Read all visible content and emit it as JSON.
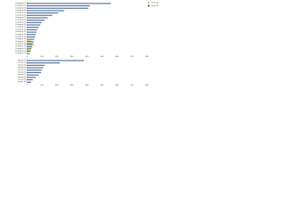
{
  "chart_data": [
    {
      "type": "bar",
      "orientation": "horizontal",
      "legend": "top-right",
      "categories": [
        "Category 01",
        "Category 02",
        "Category 03",
        "Category 04",
        "Category 05",
        "Category 06",
        "Category 07",
        "Category 08",
        "Category 09",
        "Category 10",
        "Category 11",
        "Category 12",
        "Category 13",
        "Category 14",
        "Category 15",
        "Category 16",
        "Category 17",
        "Category 18",
        "Category 19",
        "Category 20",
        "Category 21",
        "Category 22"
      ],
      "series": [
        {
          "name": "Series A",
          "color": "#d8cf5c",
          "values": [
            5,
            4,
            4,
            3,
            3,
            3,
            2,
            2,
            2,
            2,
            2,
            2,
            2,
            2,
            2,
            2,
            30,
            45,
            55,
            40,
            25,
            3
          ]
        },
        {
          "name": "Series B",
          "color": "#4b6a96",
          "values": [
            560,
            420,
            410,
            250,
            210,
            170,
            140,
            120,
            100,
            90,
            80,
            70,
            65,
            60,
            55,
            50,
            45,
            40,
            35,
            30,
            25,
            20
          ]
        }
      ],
      "xlim": [
        0,
        800
      ],
      "xticks": [
        0,
        100,
        200,
        300,
        400,
        500,
        600,
        700,
        800
      ]
    },
    {
      "type": "bar",
      "orientation": "horizontal",
      "categories": [
        "Group 01",
        "Group 02",
        "Group 03",
        "Group 04",
        "Group 05",
        "Group 06",
        "Group 07",
        "Group 08",
        "Group 09",
        "Group 10"
      ],
      "series": [
        {
          "name": "Series A",
          "color": "#d8cf5c",
          "values": [
            5,
            4,
            3,
            3,
            2,
            2,
            2,
            2,
            2,
            2
          ]
        },
        {
          "name": "Series B",
          "color": "#4b6a96",
          "values": [
            380,
            220,
            120,
            110,
            100,
            95,
            80,
            60,
            40,
            30
          ]
        }
      ],
      "xlim": [
        0,
        800
      ],
      "xticks": [
        0,
        100,
        200,
        300,
        400,
        500,
        600,
        700,
        800
      ]
    }
  ]
}
